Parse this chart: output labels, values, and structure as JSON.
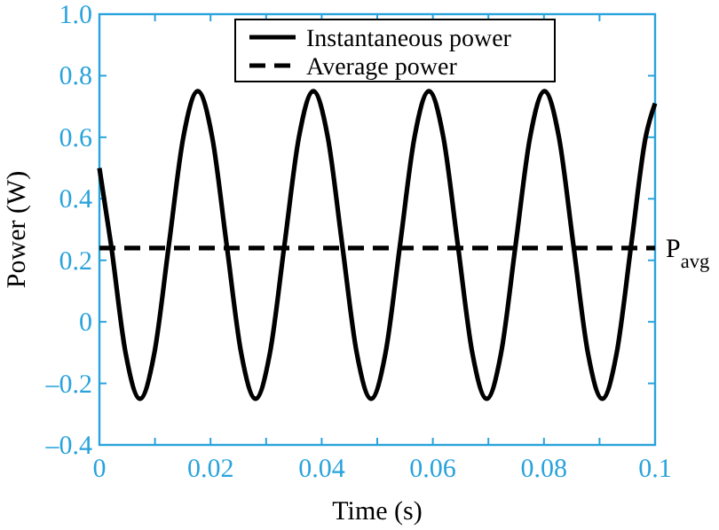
{
  "chart_data": {
    "type": "line",
    "xlabel": "Time (s)",
    "ylabel": "Power (W)",
    "xlim": [
      0,
      0.1
    ],
    "ylim": [
      -0.4,
      1.0
    ],
    "xticks": [
      0,
      {
        "value": 0.01,
        "label": null
      },
      0.02,
      {
        "value": 0.03,
        "label": null
      },
      0.04,
      {
        "value": 0.05,
        "label": null
      },
      0.06,
      {
        "value": 0.07,
        "label": null
      },
      0.08,
      {
        "value": 0.09,
        "label": null
      },
      0.1
    ],
    "yticks": [
      {
        "value": -0.4,
        "label": "–0.4"
      },
      {
        "value": -0.2,
        "label": "–0.2"
      },
      0,
      0.2,
      0.4,
      0.6,
      0.8,
      {
        "value": 1,
        "label": "1.0"
      }
    ],
    "grid": false,
    "legend": "top",
    "marker": "none",
    "series": [
      {
        "name": "Instantaneous power",
        "color": "#000000",
        "line_style": "solid",
        "x": [
          0,
          0.0021,
          0.0047,
          0.0073,
          0.0099,
          0.0125,
          0.0151,
          0.0177,
          0.0203,
          0.0229,
          0.0255,
          0.0281,
          0.0307,
          0.0333,
          0.0359,
          0.0385,
          0.0411,
          0.0437,
          0.0463,
          0.0489,
          0.0515,
          0.0541,
          0.0567,
          0.0593,
          0.0619,
          0.0645,
          0.0671,
          0.0697,
          0.0723,
          0.0749,
          0.0775,
          0.0801,
          0.0827,
          0.0853,
          0.0879,
          0.0905,
          0.0931,
          0.0957,
          0.0983,
          0.1
        ],
        "values": [
          0.5,
          0.25,
          -0.1,
          -0.25,
          -0.1,
          0.25,
          0.6,
          0.75,
          0.6,
          0.25,
          -0.1,
          -0.25,
          -0.1,
          0.25,
          0.6,
          0.75,
          0.6,
          0.25,
          -0.1,
          -0.25,
          -0.1,
          0.25,
          0.6,
          0.75,
          0.6,
          0.25,
          -0.1,
          -0.25,
          -0.1,
          0.25,
          0.6,
          0.75,
          0.6,
          0.25,
          -0.1,
          -0.25,
          -0.1,
          0.25,
          0.6,
          0.71
        ]
      },
      {
        "name": "Average power",
        "color": "#000000",
        "line_style": "dashed",
        "x": [
          0,
          0.1
        ],
        "values": [
          0.24,
          0.24
        ]
      }
    ],
    "annotations": [
      {
        "text": "P$_{avg}$",
        "x": 0.1,
        "y": 0.24
      }
    ]
  }
}
